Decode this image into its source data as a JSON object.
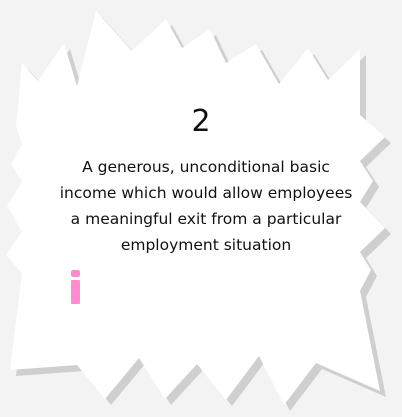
{
  "card": {
    "number": "2",
    "text": "A generous, unconditional basic income which would allow employees a meaningful exit from a particular employment situation",
    "info_label": "i"
  },
  "colors": {
    "background": "#f3f3f3",
    "card": "#ffffff",
    "shadow": "#cfcfcf",
    "info_accent": "#ff8ccf",
    "text": "#111111"
  },
  "icons": {
    "info": "info-icon"
  }
}
